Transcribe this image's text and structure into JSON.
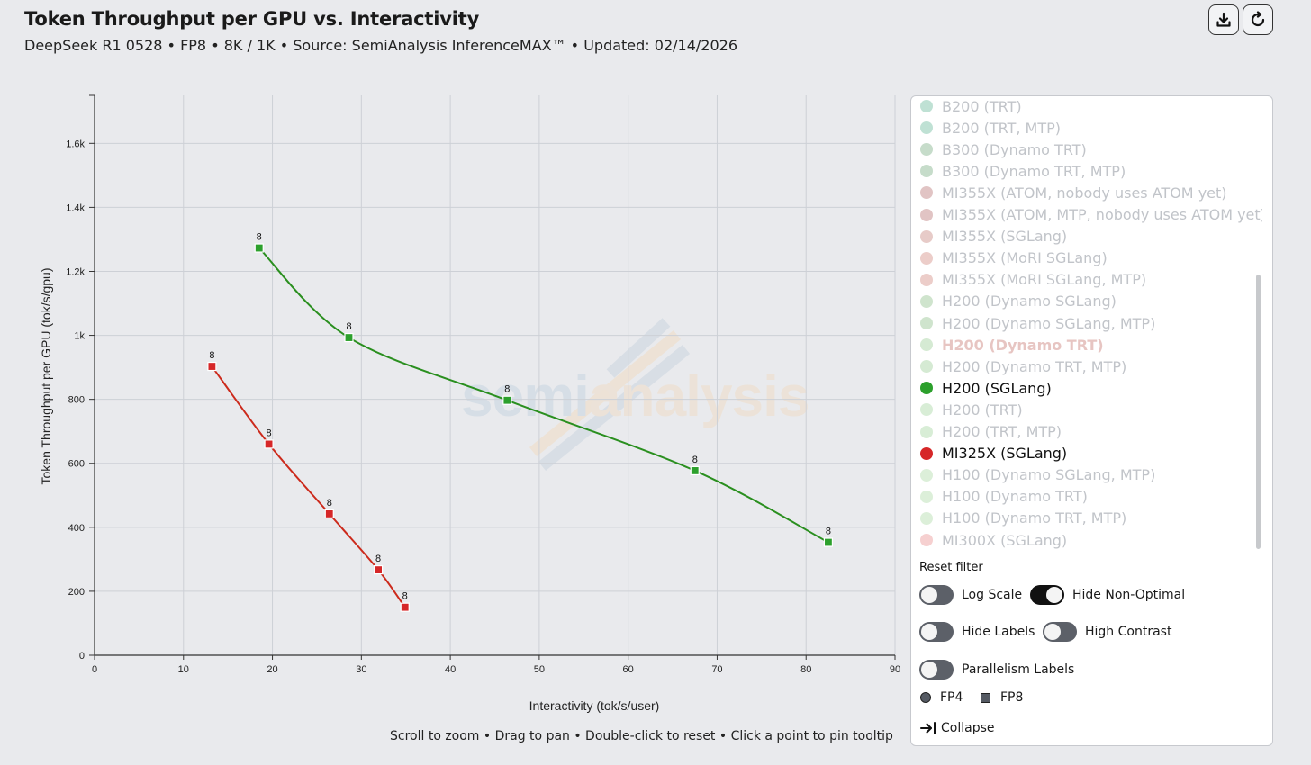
{
  "header": {
    "title": "Token Throughput per GPU vs. Interactivity",
    "subtitle": "DeepSeek R1 0528 • FP8 • 8K / 1K • Source: SemiAnalysis InferenceMAX™ • Updated: 02/14/2026"
  },
  "icons": {
    "download": "download-icon",
    "reset": "reset-icon",
    "collapse": "collapse-arrow-icon"
  },
  "hint": "Scroll to zoom • Drag to pan • Double-click to reset • Click a point to pin tooltip",
  "watermark": {
    "part1": "semi",
    "part2": "analysis"
  },
  "legend": {
    "items": [
      {
        "label": "B200 (TRT)",
        "color": "#bfe1d4",
        "active": false
      },
      {
        "label": "B200 (TRT, MTP)",
        "color": "#bfe1d4",
        "active": false
      },
      {
        "label": "B300 (Dynamo TRT)",
        "color": "#c6dcca",
        "active": false
      },
      {
        "label": "B300 (Dynamo TRT, MTP)",
        "color": "#c6dcca",
        "active": false
      },
      {
        "label": "MI355X (ATOM, nobody uses ATOM yet)",
        "color": "#e1c4c4",
        "active": false
      },
      {
        "label": "MI355X (ATOM, MTP, nobody uses ATOM yet)",
        "color": "#e1c4c4",
        "active": false
      },
      {
        "label": "MI355X (SGLang)",
        "color": "#e7cbc8",
        "active": false
      },
      {
        "label": "MI355X (MoRI SGLang)",
        "color": "#eccdc9",
        "active": false
      },
      {
        "label": "MI355X (MoRI SGLang, MTP)",
        "color": "#eccdc9",
        "active": false
      },
      {
        "label": "H200 (Dynamo SGLang)",
        "color": "#cfe4cd",
        "active": false
      },
      {
        "label": "H200 (Dynamo SGLang, MTP)",
        "color": "#cfe4cd",
        "active": false
      },
      {
        "label": "H200 (Dynamo TRT)",
        "color": "#d5ead3",
        "active": false,
        "highlight": true
      },
      {
        "label": "H200 (Dynamo TRT, MTP)",
        "color": "#d5ead3",
        "active": false
      },
      {
        "label": "H200 (SGLang)",
        "color": "#2ca02c",
        "active": true
      },
      {
        "label": "H200 (TRT)",
        "color": "#d8edd6",
        "active": false
      },
      {
        "label": "H200 (TRT, MTP)",
        "color": "#d8edd6",
        "active": false
      },
      {
        "label": "MI325X (SGLang)",
        "color": "#d62728",
        "active": true
      },
      {
        "label": "H100 (Dynamo SGLang, MTP)",
        "color": "#dcefd9",
        "active": false
      },
      {
        "label": "H100 (Dynamo TRT)",
        "color": "#dcefd9",
        "active": false
      },
      {
        "label": "H100 (Dynamo TRT, MTP)",
        "color": "#dcefd9",
        "active": false
      },
      {
        "label": "MI300X (SGLang)",
        "color": "#f6d0d0",
        "active": false
      }
    ]
  },
  "controls": {
    "reset_filter": "Reset filter",
    "toggles": [
      {
        "label": "Log Scale",
        "on": false
      },
      {
        "label": "Hide Non-Optimal",
        "on": true
      },
      {
        "label": "Hide Labels",
        "on": false
      },
      {
        "label": "High Contrast",
        "on": false
      },
      {
        "label": "Parallelism Labels",
        "on": false
      }
    ],
    "precision": {
      "fp4": "FP4",
      "fp8": "FP8"
    },
    "collapse": "Collapse"
  },
  "chart_data": {
    "type": "line",
    "xlabel": "Interactivity (tok/s/user)",
    "ylabel": "Token Throughput per GPU (tok/s/gpu)",
    "xlim": [
      0,
      90
    ],
    "ylim": [
      0,
      1750
    ],
    "x_ticks": [
      0,
      10,
      20,
      30,
      40,
      50,
      60,
      70,
      80,
      90
    ],
    "x_tick_labels": [
      "0",
      "10",
      "20",
      "30",
      "40",
      "50",
      "60",
      "70",
      "80",
      "90"
    ],
    "y_ticks": [
      0,
      200,
      400,
      600,
      800,
      1000,
      1200,
      1400,
      1600
    ],
    "y_tick_labels": [
      "0",
      "200",
      "400",
      "600",
      "800",
      "1k",
      "1.2k",
      "1.4k",
      "1.6k"
    ],
    "grid": true,
    "series": [
      {
        "name": "H200 (SGLang)",
        "color": "#2a8f1f",
        "marker_color": "#2ca02c",
        "x": [
          18.5,
          28.6,
          46.4,
          67.5,
          82.5
        ],
        "y": [
          1273,
          993,
          797,
          577,
          353
        ],
        "labels": [
          "8",
          "8",
          "8",
          "8",
          "8"
        ]
      },
      {
        "name": "MI325X (SGLang)",
        "color": "#cc2a1c",
        "marker_color": "#d62728",
        "x": [
          13.2,
          19.6,
          26.4,
          31.9,
          34.9
        ],
        "y": [
          903,
          660,
          442,
          267,
          150
        ],
        "labels": [
          "8",
          "8",
          "8",
          "8",
          "8"
        ]
      }
    ]
  }
}
